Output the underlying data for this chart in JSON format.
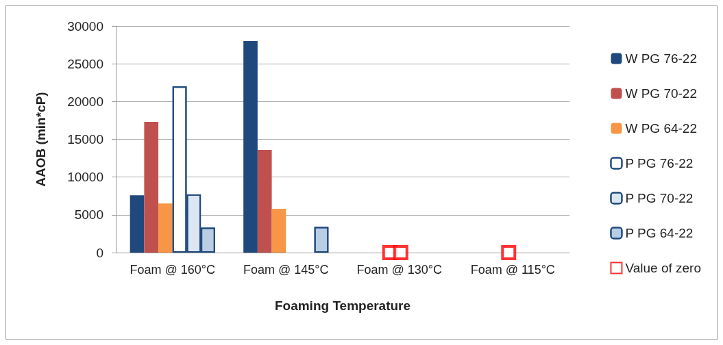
{
  "chart_data": {
    "type": "bar",
    "xlabel": "Foaming Temperature",
    "ylabel": "AAOB (min*cP)",
    "categories": [
      "Foam @ 160°C",
      "Foam @ 145°C",
      "Foam @ 130°C",
      "Foam @ 115°C"
    ],
    "series": [
      {
        "name": "W PG 76-22",
        "color": "#1f497d",
        "values": [
          7600,
          28000,
          null,
          null
        ]
      },
      {
        "name": "W PG 70-22",
        "color": "#c0504d",
        "values": [
          17300,
          13600,
          null,
          null
        ]
      },
      {
        "name": "W PG 64-22",
        "color": "#f79646",
        "values": [
          6500,
          5800,
          null,
          null
        ]
      },
      {
        "name": "P PG 76-22",
        "color": "#ffffff",
        "values": [
          22000,
          null,
          null,
          null
        ]
      },
      {
        "name": "P PG 70-22",
        "color": "#dce6f2",
        "values": [
          7700,
          null,
          null,
          null
        ]
      },
      {
        "name": "P PG 64-22",
        "color": "#b9cde5",
        "values": [
          3300,
          3400,
          null,
          null
        ]
      },
      {
        "name": "Value of zero",
        "type": "scatter",
        "marker": "square",
        "color": "#ff0000",
        "x": [
          "Foam @ 130°C",
          "Foam @ 130°C",
          "Foam @ 115°C"
        ],
        "values": [
          0,
          0,
          0
        ]
      }
    ],
    "ylim": [
      0,
      30000
    ],
    "yticks": [
      0,
      5000,
      10000,
      15000,
      20000,
      25000,
      30000
    ],
    "grid": "y",
    "legend": "right"
  }
}
